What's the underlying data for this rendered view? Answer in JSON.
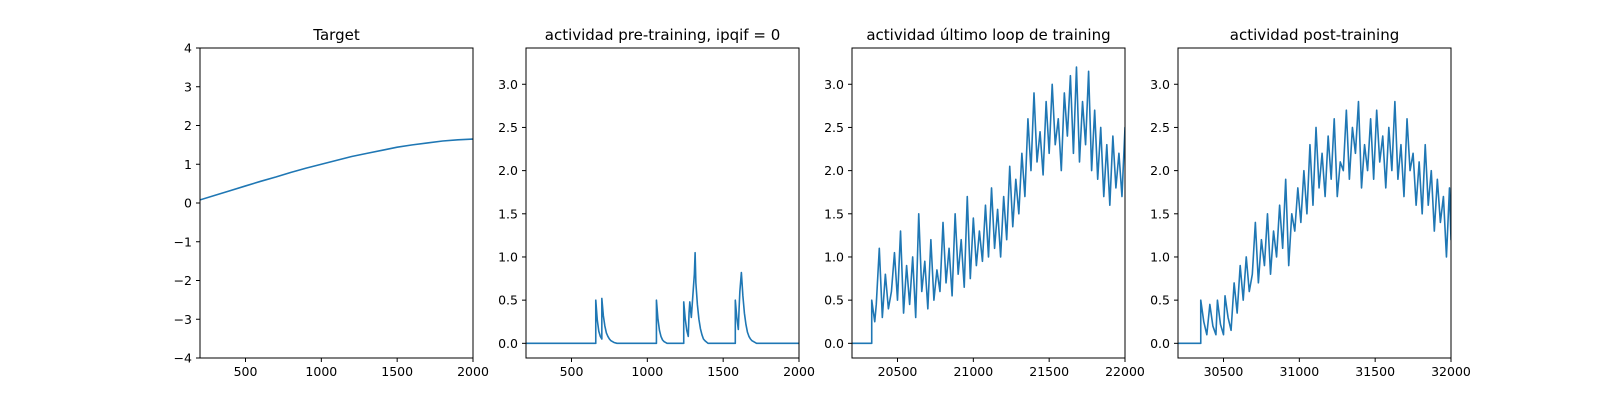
{
  "figure": {
    "background": "#ffffff",
    "line_color": "#1f77b4"
  },
  "chart_data": [
    {
      "type": "line",
      "title": "Target",
      "xlim": [
        200,
        2000
      ],
      "ylim": [
        -4,
        4
      ],
      "xticks": [
        500,
        1000,
        1500,
        2000
      ],
      "yticks": [
        -4,
        -3,
        -2,
        -1,
        0,
        1,
        2,
        3,
        4
      ],
      "xtick_labels": [
        "500",
        "1000",
        "1500",
        "2000"
      ],
      "ytick_labels": [
        "−4",
        "−3",
        "−2",
        "−1",
        "0",
        "1",
        "2",
        "3",
        "4"
      ],
      "series": [
        {
          "x": [
            200,
            300,
            400,
            500,
            600,
            700,
            800,
            900,
            1000,
            1100,
            1200,
            1300,
            1400,
            1500,
            1600,
            1700,
            1800,
            1900,
            2000
          ],
          "y": [
            0.08,
            0.2,
            0.32,
            0.44,
            0.56,
            0.67,
            0.79,
            0.9,
            1.0,
            1.1,
            1.2,
            1.28,
            1.36,
            1.44,
            1.5,
            1.55,
            1.6,
            1.63,
            1.65
          ]
        }
      ]
    },
    {
      "type": "line",
      "title": "actividad pre-training, ipqif = 0",
      "xlim": [
        200,
        2000
      ],
      "ylim": [
        -0.17,
        3.42
      ],
      "xticks": [
        500,
        1000,
        1500,
        2000
      ],
      "yticks": [
        0.0,
        0.5,
        1.0,
        1.5,
        2.0,
        2.5,
        3.0
      ],
      "xtick_labels": [
        "500",
        "1000",
        "1500",
        "2000"
      ],
      "ytick_labels": [
        "0.0",
        "0.5",
        "1.0",
        "1.5",
        "2.0",
        "2.5",
        "3.0"
      ],
      "series": [
        {
          "x": [
            200,
            660,
            660,
            670,
            680,
            690,
            700,
            700,
            710,
            720,
            730,
            740,
            750,
            760,
            770,
            780,
            800,
            1060,
            1060,
            1070,
            1080,
            1090,
            1100,
            1110,
            1130,
            1240,
            1240,
            1250,
            1260,
            1270,
            1275,
            1280,
            1290,
            1300,
            1310,
            1315,
            1320,
            1330,
            1340,
            1350,
            1360,
            1370,
            1380,
            1400,
            1580,
            1580,
            1590,
            1600,
            1605,
            1610,
            1620,
            1630,
            1640,
            1650,
            1660,
            1670,
            1680,
            1690,
            1700,
            1720,
            2000
          ],
          "y": [
            0,
            0,
            0.5,
            0.27,
            0.14,
            0.08,
            0.05,
            0.52,
            0.32,
            0.2,
            0.12,
            0.08,
            0.05,
            0.03,
            0.02,
            0.01,
            0,
            0,
            0.5,
            0.28,
            0.15,
            0.08,
            0.04,
            0.02,
            0,
            0,
            0.48,
            0.28,
            0.15,
            0.08,
            0.35,
            0.48,
            0.3,
            0.55,
            0.8,
            1.05,
            0.7,
            0.45,
            0.28,
            0.17,
            0.1,
            0.05,
            0.03,
            0,
            0,
            0.5,
            0.3,
            0.16,
            0.4,
            0.6,
            0.82,
            0.55,
            0.35,
            0.22,
            0.13,
            0.08,
            0.05,
            0.03,
            0.02,
            0,
            0
          ]
        }
      ]
    },
    {
      "type": "line",
      "title": "actividad último loop de training",
      "xlim": [
        20200,
        22000
      ],
      "ylim": [
        -0.17,
        3.42
      ],
      "xticks": [
        20500,
        21000,
        21500,
        22000
      ],
      "yticks": [
        0.0,
        0.5,
        1.0,
        1.5,
        2.0,
        2.5,
        3.0
      ],
      "xtick_labels": [
        "20500",
        "21000",
        "21500",
        "22000"
      ],
      "ytick_labels": [
        "0.0",
        "0.5",
        "1.0",
        "1.5",
        "2.0",
        "2.5",
        "3.0"
      ],
      "series": [
        {
          "x": [
            20200,
            20330,
            20330,
            20350,
            20360,
            20380,
            20400,
            20420,
            20440,
            20460,
            20480,
            20500,
            20520,
            20540,
            20560,
            20580,
            20600,
            20620,
            20640,
            20660,
            20680,
            20700,
            20720,
            20740,
            20760,
            20780,
            20800,
            20820,
            20840,
            20860,
            20880,
            20900,
            20920,
            20940,
            20960,
            20980,
            21000,
            21020,
            21040,
            21060,
            21080,
            21100,
            21120,
            21140,
            21160,
            21180,
            21200,
            21220,
            21240,
            21260,
            21280,
            21300,
            21320,
            21340,
            21360,
            21380,
            21400,
            21420,
            21440,
            21460,
            21480,
            21500,
            21520,
            21540,
            21560,
            21580,
            21600,
            21620,
            21640,
            21660,
            21680,
            21700,
            21720,
            21740,
            21760,
            21780,
            21800,
            21820,
            21840,
            21860,
            21880,
            21900,
            21920,
            21940,
            21960,
            21980,
            22000
          ],
          "y": [
            0,
            0,
            0.5,
            0.25,
            0.45,
            1.1,
            0.3,
            0.8,
            0.4,
            0.6,
            1.05,
            0.5,
            1.3,
            0.35,
            0.9,
            0.45,
            1.0,
            0.3,
            1.5,
            0.6,
            0.95,
            0.4,
            1.2,
            0.5,
            0.85,
            0.6,
            1.4,
            0.7,
            1.1,
            0.55,
            1.5,
            0.8,
            1.2,
            0.65,
            1.7,
            0.75,
            1.45,
            0.9,
            1.3,
            0.95,
            1.6,
            1.0,
            1.8,
            1.1,
            1.55,
            1.0,
            1.7,
            1.2,
            2.05,
            1.35,
            1.9,
            1.5,
            2.2,
            1.7,
            2.6,
            2.0,
            2.9,
            2.1,
            2.45,
            1.95,
            2.8,
            2.2,
            3.0,
            2.3,
            2.6,
            2.0,
            2.9,
            2.4,
            3.1,
            2.2,
            3.2,
            2.1,
            2.8,
            2.3,
            3.15,
            2.0,
            2.7,
            1.9,
            2.5,
            1.7,
            2.3,
            1.6,
            2.4,
            1.8,
            2.2,
            1.7,
            2.5
          ]
        }
      ]
    },
    {
      "type": "line",
      "title": "actividad post-training",
      "xlim": [
        30200,
        32000
      ],
      "ylim": [
        -0.17,
        3.42
      ],
      "xticks": [
        30500,
        31000,
        31500,
        32000
      ],
      "yticks": [
        0.0,
        0.5,
        1.0,
        1.5,
        2.0,
        2.5,
        3.0
      ],
      "xtick_labels": [
        "30500",
        "31000",
        "31500",
        "32000"
      ],
      "ytick_labels": [
        "0.0",
        "0.5",
        "1.0",
        "1.5",
        "2.0",
        "2.5",
        "3.0"
      ],
      "series": [
        {
          "x": [
            30200,
            30350,
            30350,
            30370,
            30390,
            30410,
            30410,
            30430,
            30450,
            30460,
            30460,
            30480,
            30500,
            30510,
            30510,
            30530,
            30550,
            30570,
            30590,
            30610,
            30630,
            30650,
            30670,
            30690,
            30710,
            30730,
            30750,
            30770,
            30790,
            30810,
            30830,
            30850,
            30870,
            30890,
            30910,
            30930,
            30950,
            30970,
            30990,
            31010,
            31030,
            31050,
            31070,
            31090,
            31110,
            31130,
            31150,
            31170,
            31190,
            31210,
            31230,
            31250,
            31270,
            31290,
            31310,
            31330,
            31350,
            31370,
            31390,
            31410,
            31430,
            31450,
            31470,
            31490,
            31510,
            31530,
            31550,
            31570,
            31590,
            31610,
            31630,
            31650,
            31670,
            31690,
            31710,
            31730,
            31750,
            31770,
            31790,
            31810,
            31830,
            31850,
            31870,
            31890,
            31910,
            31930,
            31950,
            31970,
            31990,
            32000
          ],
          "y": [
            0,
            0,
            0.5,
            0.25,
            0.1,
            0.45,
            0.45,
            0.2,
            0.1,
            0.5,
            0.5,
            0.22,
            0.1,
            0.55,
            0.55,
            0.3,
            0.15,
            0.7,
            0.35,
            0.9,
            0.5,
            1.0,
            0.6,
            0.8,
            1.4,
            0.7,
            1.2,
            0.9,
            1.5,
            0.8,
            1.3,
            1.0,
            1.6,
            1.1,
            1.9,
            0.9,
            1.5,
            1.3,
            1.8,
            1.4,
            2.0,
            1.5,
            2.3,
            1.6,
            2.5,
            1.8,
            2.2,
            1.7,
            2.4,
            1.9,
            2.6,
            1.7,
            2.1,
            2.0,
            2.7,
            1.9,
            2.5,
            2.2,
            2.8,
            1.8,
            2.3,
            2.0,
            2.6,
            1.9,
            2.7,
            2.1,
            2.4,
            1.8,
            2.5,
            2.0,
            2.8,
            1.9,
            2.3,
            1.7,
            2.6,
            2.0,
            2.2,
            1.6,
            2.1,
            1.5,
            2.3,
            1.6,
            2.0,
            1.3,
            1.9,
            1.4,
            1.7,
            1.0,
            1.8,
            1.2
          ]
        }
      ]
    }
  ]
}
